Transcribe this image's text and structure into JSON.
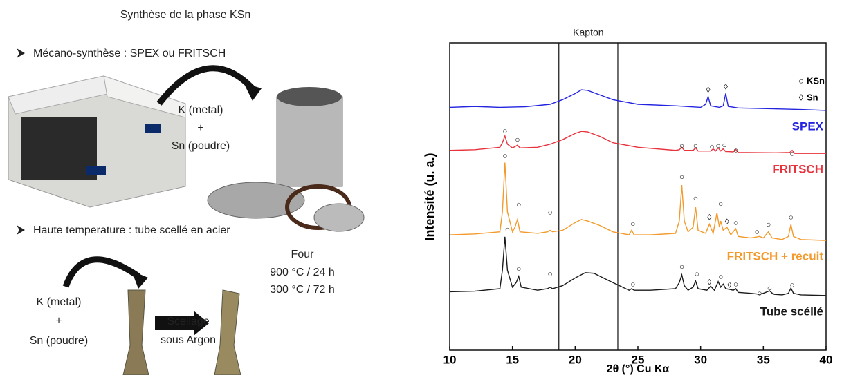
{
  "slide": {
    "title": "Synthèse de la phase KSn",
    "sections": [
      {
        "heading": "Mécano-synthèse : SPEX ou FRITSCH",
        "reagents": [
          "K (metal)",
          "+",
          "Sn (poudre)"
        ]
      },
      {
        "heading": "Haute temperature : tube scellé en acier",
        "reagents": [
          "K (metal)",
          "+",
          "Sn (poudre)"
        ],
        "furnace": [
          "Four",
          "900 °C / 24 h",
          "300 °C / 72 h"
        ],
        "process": [
          "Scellage",
          "sous Argon"
        ]
      }
    ]
  },
  "chart_data": {
    "type": "line",
    "xlabel": "2θ (°) Cu Kα",
    "ylabel": "Intensité (u. a.)",
    "xlim": [
      10,
      40
    ],
    "xticks": [
      10,
      15,
      20,
      25,
      30,
      35,
      40
    ],
    "ylim": [
      0,
      100
    ],
    "reference_lines": [
      18.7,
      23.4
    ],
    "reference_label": "Kapton",
    "legend": [
      {
        "symbol": "○",
        "label": "KSn"
      },
      {
        "symbol": "◊",
        "label": "Sn"
      }
    ],
    "series": [
      {
        "name": "SPEX",
        "color": "#2424e0",
        "x": [
          10,
          12,
          14,
          16,
          18,
          19,
          20,
          20.5,
          21,
          22,
          23,
          25,
          28,
          30,
          30.4,
          30.6,
          30.8,
          31.5,
          31.8,
          32,
          32.2,
          33,
          35,
          38,
          40
        ],
        "values": [
          79,
          79.3,
          79,
          79.2,
          80,
          81.5,
          83.5,
          84.7,
          84.5,
          83,
          81.5,
          80,
          79.5,
          79,
          80,
          82.5,
          79.5,
          79,
          79.5,
          83.5,
          79.3,
          78.8,
          78.6,
          78.3,
          78
        ],
        "peak_marks": [
          {
            "x": 30.6,
            "y": 84.5,
            "symbol": "◊"
          },
          {
            "x": 32.0,
            "y": 85.6,
            "symbol": "◊"
          }
        ]
      },
      {
        "name": "FRITSCH",
        "color": "#e8323c",
        "x": [
          10,
          12,
          14,
          14.2,
          14.4,
          14.6,
          15,
          15.2,
          15.4,
          15.6,
          17,
          18,
          19,
          20,
          20.5,
          21,
          22,
          23,
          25,
          28,
          28.3,
          28.5,
          28.7,
          29.4,
          29.6,
          29.8,
          30.8,
          31,
          31.2,
          31.4,
          31.6,
          31.8,
          32,
          32.2,
          32.6,
          32.8,
          33,
          36,
          37.1,
          37.3,
          37.5,
          40
        ],
        "values": [
          65,
          65.2,
          66,
          67.5,
          69.7,
          67,
          65.8,
          66.2,
          66.7,
          65.8,
          66,
          67,
          68.5,
          70.5,
          71.2,
          71,
          69.5,
          67.5,
          66,
          65,
          65.2,
          66,
          65,
          65,
          65.8,
          64.8,
          64.8,
          65.5,
          64.8,
          65.8,
          64.8,
          65.5,
          64.6,
          64.6,
          64.5,
          65.3,
          64.3,
          64.2,
          64.3,
          65,
          64,
          64
        ],
        "peak_marks": [
          {
            "x": 14.4,
            "y": 71.2,
            "symbol": "○"
          },
          {
            "x": 15.4,
            "y": 68.3,
            "symbol": "○"
          },
          {
            "x": 28.5,
            "y": 66.3,
            "symbol": "○"
          },
          {
            "x": 29.6,
            "y": 66.3,
            "symbol": "○"
          },
          {
            "x": 30.9,
            "y": 66.1,
            "symbol": "○"
          },
          {
            "x": 31.4,
            "y": 66.3,
            "symbol": "○"
          },
          {
            "x": 31.9,
            "y": 66.5,
            "symbol": "○"
          },
          {
            "x": 32.8,
            "y": 64.9,
            "symbol": "○"
          },
          {
            "x": 37.3,
            "y": 63.8,
            "symbol": "○"
          }
        ]
      },
      {
        "name": "FRITSCH + recuit",
        "color": "#f39a2b",
        "x": [
          10,
          12,
          14,
          14.2,
          14.4,
          14.6,
          15,
          15.2,
          15.4,
          15.6,
          17,
          17.8,
          18,
          18.2,
          19,
          20,
          20.5,
          21,
          22,
          23,
          24.3,
          24.5,
          24.7,
          26,
          28,
          28.3,
          28.5,
          28.7,
          29,
          29.4,
          29.6,
          29.8,
          30.4,
          30.7,
          31,
          31.3,
          31.5,
          31.6,
          31.8,
          32.1,
          32.4,
          32.8,
          33,
          34,
          34.7,
          35,
          35.4,
          35.7,
          36.5,
          37,
          37.2,
          37.4,
          38,
          40
        ],
        "values": [
          37.5,
          37.8,
          38.5,
          45,
          61,
          45,
          38.5,
          40,
          42.5,
          38.5,
          38,
          38.5,
          39,
          38.5,
          39,
          41.5,
          42.5,
          42,
          40.5,
          38.5,
          37.5,
          39,
          37.5,
          37.5,
          38,
          42,
          53.7,
          42,
          38.5,
          40,
          46.5,
          39,
          38,
          41,
          38,
          44.7,
          40,
          42,
          39,
          40,
          37.5,
          39.5,
          37,
          36.5,
          37,
          36.5,
          38.5,
          36.5,
          36,
          37,
          40.9,
          37,
          36,
          35.7
        ],
        "peak_marks": [
          {
            "x": 14.4,
            "y": 63.1,
            "symbol": "○"
          },
          {
            "x": 15.5,
            "y": 47.2,
            "symbol": "○"
          },
          {
            "x": 18,
            "y": 44.7,
            "symbol": "○"
          },
          {
            "x": 24.6,
            "y": 40.9,
            "symbol": "○"
          },
          {
            "x": 28.5,
            "y": 56.2,
            "symbol": "○"
          },
          {
            "x": 29.6,
            "y": 49.2,
            "symbol": "○"
          },
          {
            "x": 30.7,
            "y": 43.1,
            "symbol": "◊"
          },
          {
            "x": 31.6,
            "y": 47.4,
            "symbol": "○"
          },
          {
            "x": 32.1,
            "y": 41.6,
            "symbol": "◊"
          },
          {
            "x": 32.8,
            "y": 41.3,
            "symbol": "○"
          },
          {
            "x": 34.5,
            "y": 38.4,
            "symbol": "○"
          },
          {
            "x": 35.4,
            "y": 40.7,
            "symbol": "○"
          },
          {
            "x": 37.2,
            "y": 43.1,
            "symbol": "○"
          }
        ]
      },
      {
        "name": "Tube scéllé",
        "color": "#1a1a1a",
        "x": [
          10,
          12,
          14,
          14.2,
          14.4,
          14.6,
          15,
          15.3,
          15.5,
          15.7,
          17,
          17.8,
          18,
          18.2,
          19,
          20,
          20.8,
          21.5,
          22,
          23,
          24.3,
          24.5,
          24.7,
          26,
          28,
          28.3,
          28.5,
          28.7,
          29,
          29.4,
          29.6,
          29.8,
          30.5,
          30.8,
          31.1,
          31.4,
          31.6,
          31.8,
          32,
          32.3,
          32.6,
          32.8,
          33,
          34,
          34.7,
          35,
          35.5,
          35.8,
          36.5,
          37,
          37.2,
          37.4,
          38,
          40
        ],
        "values": [
          19,
          19.2,
          20,
          26,
          36.9,
          26,
          20.5,
          22,
          24,
          20.5,
          19.5,
          20,
          20.5,
          20,
          21,
          23.5,
          25.2,
          25,
          24,
          22,
          19.5,
          20,
          19.5,
          19.5,
          20,
          22,
          24.5,
          21,
          19.5,
          20.5,
          22.5,
          20,
          19.5,
          20.8,
          19.5,
          22.3,
          20.5,
          21.5,
          20,
          19.8,
          19.5,
          20,
          18.8,
          18.5,
          18.2,
          18.5,
          19.3,
          18.2,
          18,
          18.5,
          20.2,
          18.5,
          18,
          17.8
        ],
        "peak_marks": [
          {
            "x": 14.6,
            "y": 39.1,
            "symbol": "○"
          },
          {
            "x": 15.5,
            "y": 26.3,
            "symbol": "○"
          },
          {
            "x": 18,
            "y": 24.7,
            "symbol": "○"
          },
          {
            "x": 24.6,
            "y": 21.3,
            "symbol": "○"
          },
          {
            "x": 28.5,
            "y": 27,
            "symbol": "○"
          },
          {
            "x": 29.7,
            "y": 24.7,
            "symbol": "○"
          },
          {
            "x": 30.7,
            "y": 22,
            "symbol": "◊"
          },
          {
            "x": 31.6,
            "y": 23.8,
            "symbol": "○"
          },
          {
            "x": 32.3,
            "y": 21.1,
            "symbol": "◊"
          },
          {
            "x": 32.8,
            "y": 21.3,
            "symbol": "○"
          },
          {
            "x": 34.7,
            "y": 18.4,
            "symbol": "○"
          },
          {
            "x": 35.5,
            "y": 20,
            "symbol": "○"
          },
          {
            "x": 37.3,
            "y": 21.1,
            "symbol": "○"
          }
        ]
      }
    ]
  }
}
